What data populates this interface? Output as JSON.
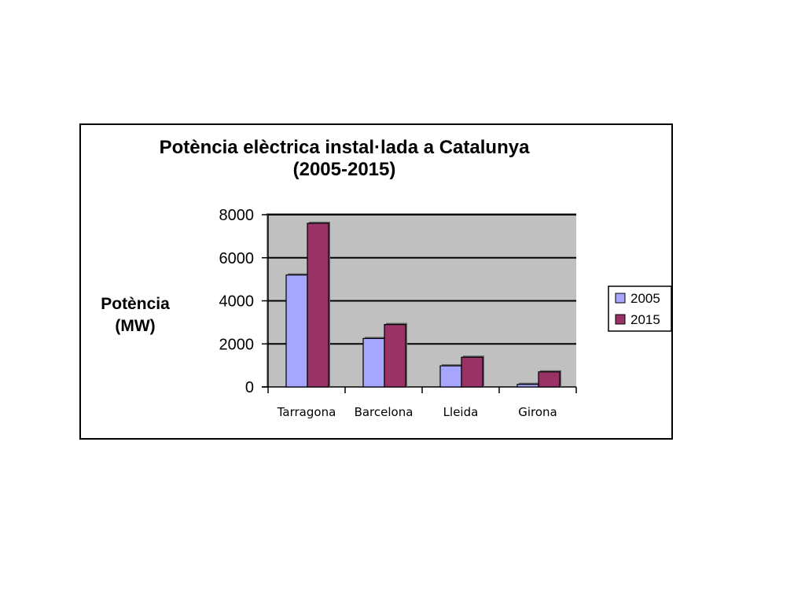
{
  "chart_data": {
    "type": "bar",
    "title_lines": [
      "Potència elèctrica instal·lada a Catalunya",
      "(2005-2015)"
    ],
    "ylabel_lines": [
      "Potència",
      "(MW)"
    ],
    "xlabel": "",
    "categories": [
      "Tarragona",
      "Barcelona",
      "Lleida",
      "Girona"
    ],
    "series": [
      {
        "name": "2005",
        "values": [
          5200,
          2250,
          980,
          120
        ],
        "color": "#a6a6ff"
      },
      {
        "name": "2015",
        "values": [
          7600,
          2900,
          1380,
          700
        ],
        "color": "#993366"
      }
    ],
    "ylim": [
      0,
      8000
    ],
    "yticks": [
      "0",
      "2000",
      "4000",
      "6000",
      "8000"
    ],
    "grid": true,
    "plot_background": "#c0c0c0",
    "legend_position": "right"
  }
}
